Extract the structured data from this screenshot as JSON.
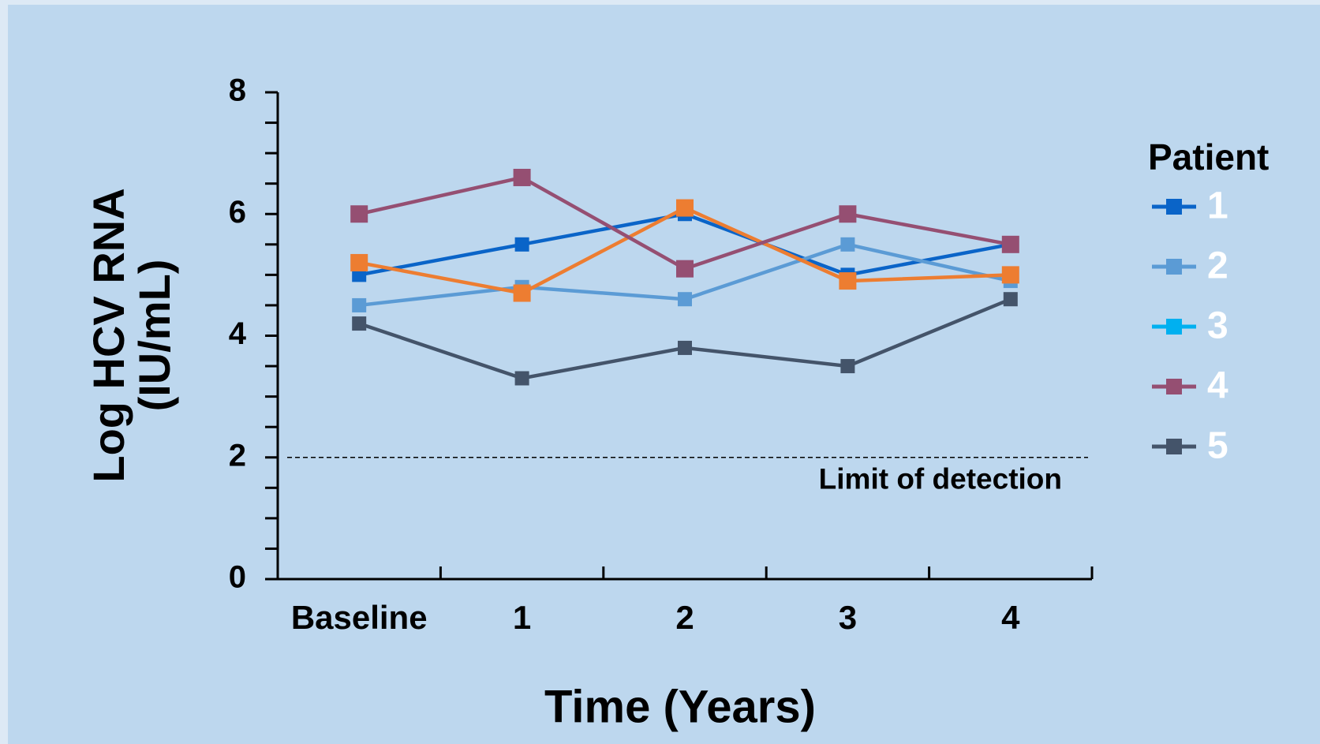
{
  "chart_data": {
    "type": "line",
    "xlabel": "Time (Years)",
    "ylabel": [
      "Log HCV RNA",
      "(IU/mL)"
    ],
    "categories": [
      "Baseline",
      "1",
      "2",
      "3",
      "4"
    ],
    "ylim": [
      0,
      8
    ],
    "yticks": [
      0,
      2,
      4,
      6,
      8
    ],
    "yminorticks": [
      0.5,
      1,
      1.5,
      2.5,
      3,
      3.5,
      4.5,
      5,
      5.5,
      6.5,
      7,
      7.5
    ],
    "legend_title": "Patient",
    "legend": "right",
    "reference_line": {
      "value": 2,
      "label": "Limit of detection"
    },
    "series": [
      {
        "name": "1",
        "color": "#0a64c8",
        "values": [
          5.0,
          5.5,
          6.0,
          5.0,
          5.5
        ]
      },
      {
        "name": "2",
        "color": "#5b9bd5",
        "values": [
          4.5,
          4.8,
          4.6,
          5.5,
          4.9
        ]
      },
      {
        "name": "3",
        "color": "#ed7d31",
        "legend_color": "#00b0f0",
        "values": [
          5.2,
          4.7,
          6.1,
          4.9,
          5.0
        ]
      },
      {
        "name": "4",
        "color": "#954f72",
        "values": [
          6.0,
          6.6,
          5.1,
          6.0,
          5.5
        ]
      },
      {
        "name": "5",
        "color": "#44546a",
        "values": [
          4.2,
          3.3,
          3.8,
          3.5,
          4.6
        ]
      }
    ]
  }
}
